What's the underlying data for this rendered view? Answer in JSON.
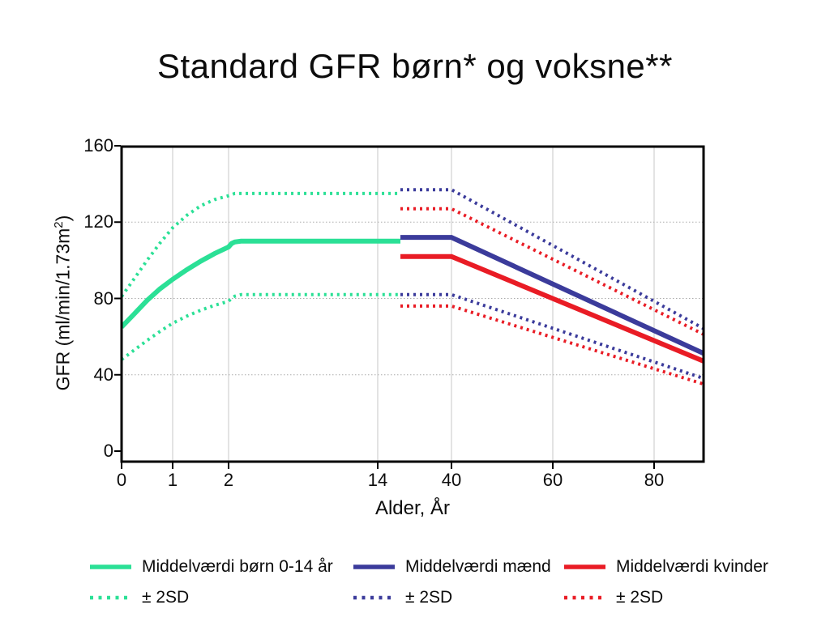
{
  "title": "Standard GFR børn* og voksne**",
  "chart_data": {
    "type": "line",
    "title": "Standard GFR børn* og voksne**",
    "xlabel": "Alder, År",
    "ylabel": "GFR (ml/min/1.73m2)",
    "ylabel_parts": {
      "pre": "GFR (ml/min/1.73m",
      "sup": "2",
      "post": ")"
    },
    "x_ticks": [
      0,
      1,
      2,
      14,
      40,
      60,
      80
    ],
    "x_gridlines": [
      1,
      2,
      14,
      40,
      60,
      80
    ],
    "y_ticks": [
      0,
      40,
      80,
      120,
      160
    ],
    "y_gridlines": [
      40,
      80,
      120
    ],
    "ylim": [
      0,
      160
    ],
    "xlim": [
      0,
      90
    ],
    "x_scale": "nonlinear-piecewise (expanded 0-2 years, compressed 2-40, linear 40-90)",
    "grid": true,
    "legend_position": "bottom",
    "colors": {
      "children": "#2BE096",
      "men": "#3B3B9B",
      "women": "#E91C25"
    },
    "series": [
      {
        "key": "children_upper2sd",
        "name": "Børn +2SD",
        "group": "children",
        "style": "dotted",
        "color": "#2BE096",
        "points": [
          [
            0,
            81
          ],
          [
            0.25,
            90.5
          ],
          [
            0.5,
            100
          ],
          [
            0.75,
            109
          ],
          [
            1,
            117
          ],
          [
            1.25,
            123.5
          ],
          [
            1.5,
            128.5
          ],
          [
            1.75,
            131.8
          ],
          [
            2,
            133.8
          ],
          [
            2.5,
            135
          ],
          [
            22,
            135
          ]
        ]
      },
      {
        "key": "children_lower2sd",
        "name": "Børn -2SD",
        "group": "children",
        "style": "dotted",
        "color": "#2BE096",
        "points": [
          [
            0,
            48
          ],
          [
            0.25,
            53
          ],
          [
            0.5,
            58
          ],
          [
            0.75,
            62.7
          ],
          [
            1,
            67
          ],
          [
            1.25,
            70.7
          ],
          [
            1.5,
            73.8
          ],
          [
            1.75,
            76.4
          ],
          [
            2,
            78.5
          ],
          [
            2.25,
            80.2
          ],
          [
            2.5,
            81.2
          ],
          [
            3,
            82
          ],
          [
            22,
            82
          ]
        ]
      },
      {
        "key": "men_upper2sd",
        "name": "Mænd +2SD",
        "group": "men",
        "style": "dotted",
        "color": "#3B3B9B",
        "points": [
          [
            22,
            137
          ],
          [
            40,
            137
          ],
          [
            90,
            64
          ]
        ]
      },
      {
        "key": "men_lower2sd",
        "name": "Mænd -2SD",
        "group": "men",
        "style": "dotted",
        "color": "#3B3B9B",
        "points": [
          [
            22,
            82
          ],
          [
            40,
            82
          ],
          [
            90,
            38
          ]
        ]
      },
      {
        "key": "women_upper2sd",
        "name": "Kvinder +2SD",
        "group": "women",
        "style": "dotted",
        "color": "#E91C25",
        "points": [
          [
            22,
            127
          ],
          [
            40,
            127
          ],
          [
            90,
            61
          ]
        ]
      },
      {
        "key": "women_lower2sd",
        "name": "Kvinder -2SD",
        "group": "women",
        "style": "dotted",
        "color": "#E91C25",
        "points": [
          [
            22,
            76
          ],
          [
            40,
            76
          ],
          [
            90,
            35
          ]
        ]
      },
      {
        "key": "children_mean",
        "name": "Middelværdi børn 0-14 år",
        "group": "children",
        "style": "solid",
        "color": "#2BE096",
        "points": [
          [
            0,
            65
          ],
          [
            0.25,
            72
          ],
          [
            0.5,
            79
          ],
          [
            0.75,
            85
          ],
          [
            1,
            90
          ],
          [
            1.25,
            95
          ],
          [
            1.5,
            99.5
          ],
          [
            1.75,
            103.5
          ],
          [
            2,
            107
          ],
          [
            2.25,
            108.8
          ],
          [
            2.5,
            109.6
          ],
          [
            3,
            110
          ],
          [
            22,
            110
          ]
        ]
      },
      {
        "key": "women_mean",
        "name": "Middelværdi kvinder",
        "group": "women",
        "style": "solid",
        "color": "#E91C25",
        "points": [
          [
            22,
            102
          ],
          [
            40,
            102
          ],
          [
            90,
            47
          ]
        ]
      },
      {
        "key": "men_mean",
        "name": "Middelværdi mænd",
        "group": "men",
        "style": "solid",
        "color": "#3B3B9B",
        "points": [
          [
            22,
            112
          ],
          [
            40,
            112
          ],
          [
            90,
            51
          ]
        ]
      }
    ]
  },
  "legend": {
    "items": [
      {
        "label": "Middelværdi børn 0-14 år",
        "color": "#2BE096",
        "style": "solid"
      },
      {
        "label": "Middelværdi mænd",
        "color": "#3B3B9B",
        "style": "solid"
      },
      {
        "label": "Middelværdi kvinder",
        "color": "#E91C25",
        "style": "solid"
      },
      {
        "label": "± 2SD",
        "color": "#2BE096",
        "style": "dotted"
      },
      {
        "label": "± 2SD",
        "color": "#3B3B9B",
        "style": "dotted"
      },
      {
        "label": "± 2SD",
        "color": "#E91C25",
        "style": "dotted"
      }
    ]
  }
}
